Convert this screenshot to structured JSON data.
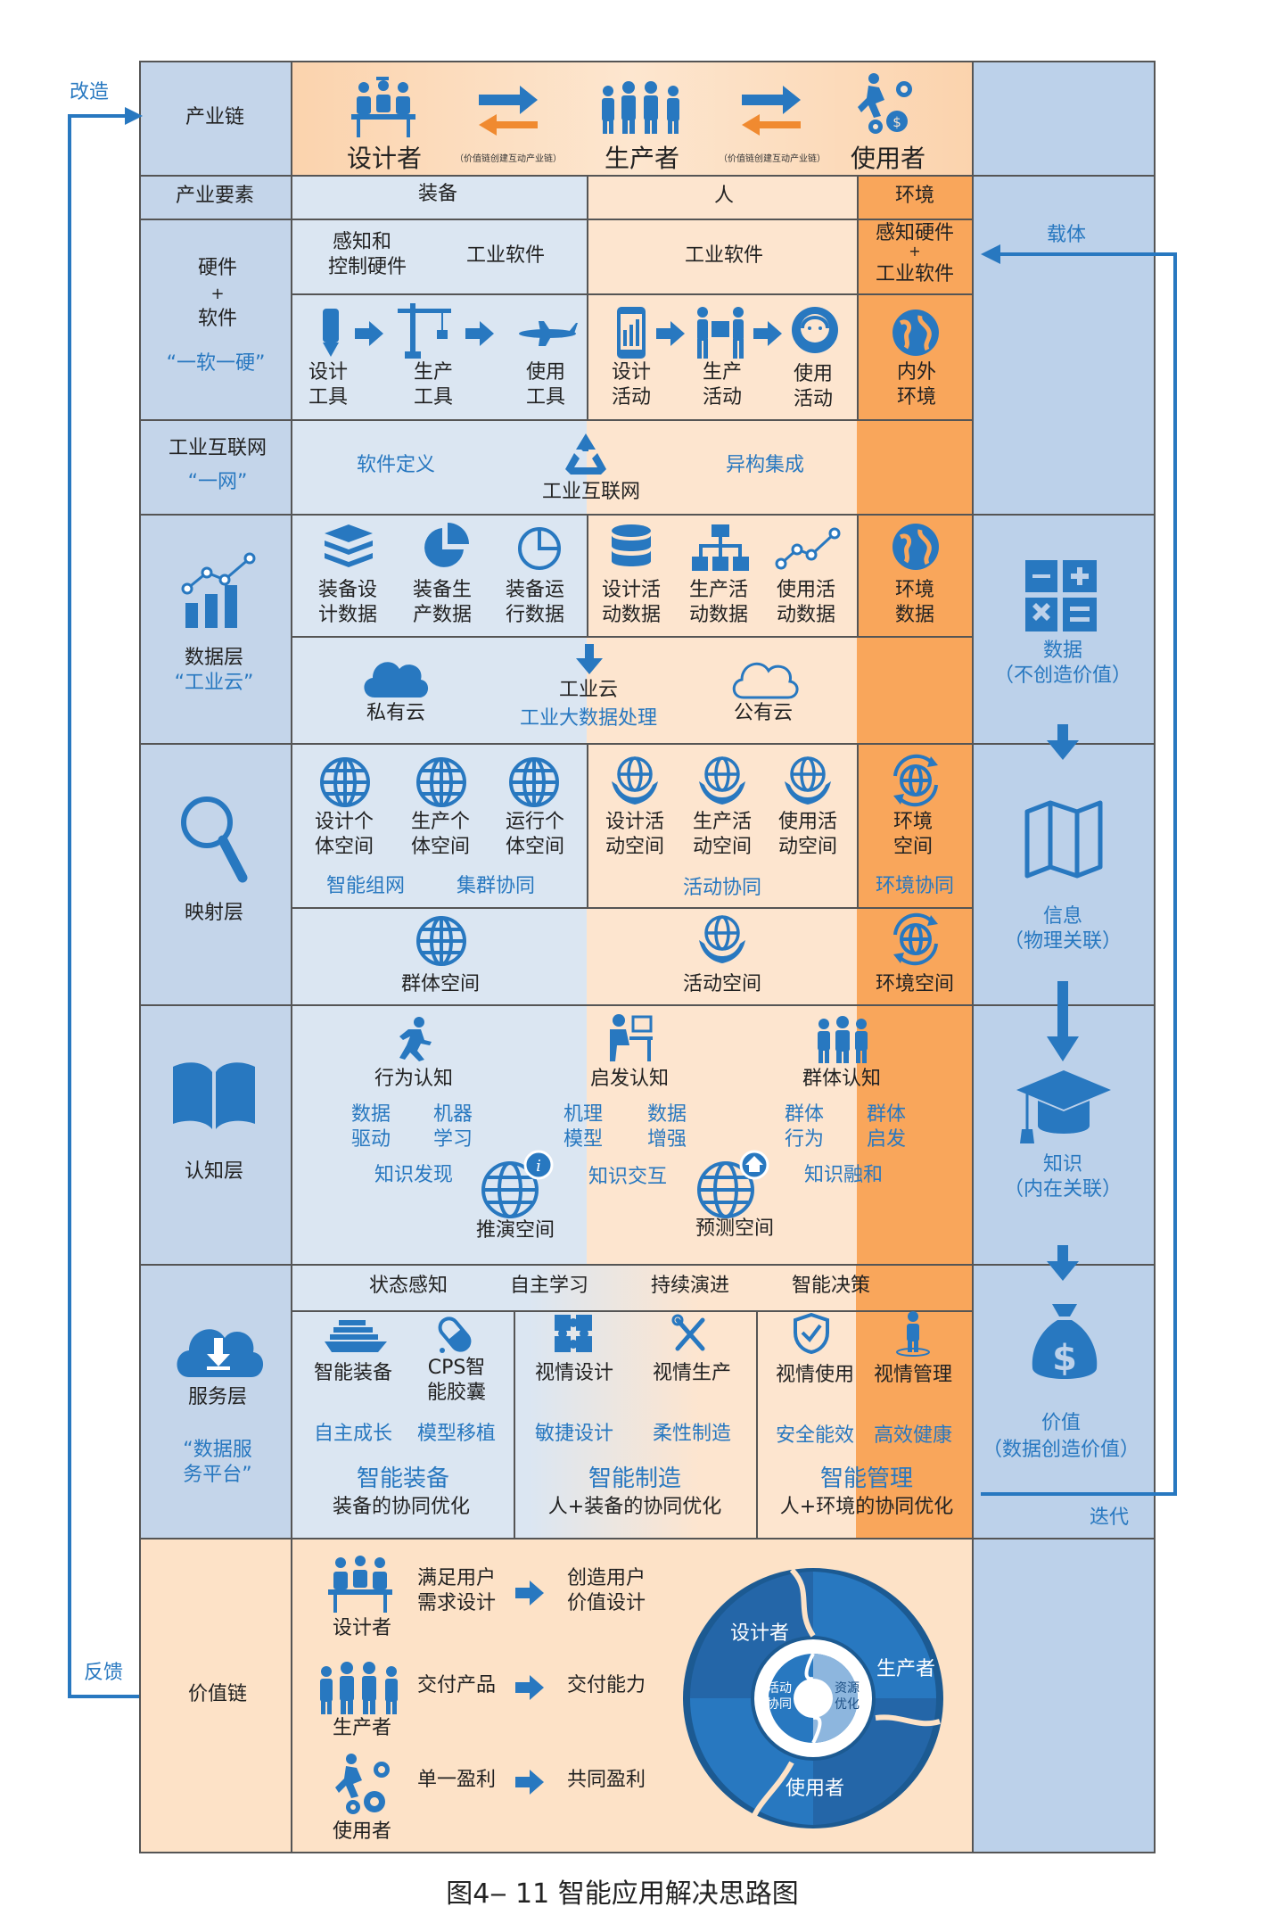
{
  "left_arrows": {
    "gaizao": "改造",
    "fankui": "反馈"
  },
  "right_arrows": {
    "zaiti": "载体",
    "diedai": "迭代"
  },
  "rows": {
    "industry_chain": "产业链",
    "industry_elements": "产业要素",
    "hardware_software": {
      "line1": "硬件",
      "plus": "+",
      "line2": "软件",
      "quote": "“一软一硬”"
    },
    "industrial_internet": {
      "line1": "工业互联网",
      "quote": "“一网”"
    },
    "data_layer": {
      "line1": "数据层",
      "quote": "“工业云”"
    },
    "mapping_layer": "映射层",
    "cognition_layer": "认知层",
    "service_layer": {
      "line1": "服务层",
      "quote_l1": "“数据服",
      "quote_l2": "务平台”"
    },
    "value_chain": "价值链"
  },
  "chain_top": {
    "designer": "设计者",
    "producer": "生产者",
    "user": "使用者",
    "note1": "（价值链创建互动产业链）",
    "note2": "（价值链创建互动产业链）"
  },
  "elements": {
    "equipment": "装备",
    "people": "人",
    "environment": "环境"
  },
  "hw_header": {
    "sense_l1": "感知和",
    "sense_l2": "控制硬件",
    "software1": "工业软件",
    "software2": "工业软件",
    "env_l1": "感知硬件",
    "env_plus": "+",
    "env_l2": "工业软件"
  },
  "tools": {
    "design_l1": "设计",
    "design_l2": "工具",
    "produce_l1": "生产",
    "produce_l2": "工具",
    "use_l1": "使用",
    "use_l2": "工具",
    "dact_l1": "设计",
    "dact_l2": "活动",
    "pact_l1": "生产",
    "pact_l2": "活动",
    "uact_l1": "使用",
    "uact_l2": "活动",
    "env_l1": "内外",
    "env_l2": "环境"
  },
  "internet": {
    "left": "软件定义",
    "right": "异构集成",
    "center": "工业互联网"
  },
  "data": {
    "d1_l1": "装备设",
    "d1_l2": "计数据",
    "d2_l1": "装备生",
    "d2_l2": "产数据",
    "d3_l1": "装备运",
    "d3_l2": "行数据",
    "d4_l1": "设计活",
    "d4_l2": "动数据",
    "d5_l1": "生产活",
    "d5_l2": "动数据",
    "d6_l1": "使用活",
    "d6_l2": "动数据",
    "d7_l1": "环境",
    "d7_l2": "数据",
    "private": "私有云",
    "public": "公有云",
    "cloud": "工业云",
    "bigdata": "工业大数据处理"
  },
  "mapping": {
    "m1_l1": "设计个",
    "m1_l2": "体空间",
    "m2_l1": "生产个",
    "m2_l2": "体空间",
    "m3_l1": "运行个",
    "m3_l2": "体空间",
    "m4_l1": "设计活",
    "m4_l2": "动空间",
    "m5_l1": "生产活",
    "m5_l2": "动空间",
    "m6_l1": "使用活",
    "m6_l2": "动空间",
    "m7_l1": "环境",
    "m7_l2": "空间",
    "smart_net": "智能组网",
    "cluster": "集群协同",
    "activity_co": "活动协同",
    "env_co": "环境协同",
    "group_space": "群体空间",
    "activity_space": "活动空间",
    "env_space": "环境空间"
  },
  "cognition": {
    "behavior": "行为认知",
    "inspire": "启发认知",
    "group": "群体认知",
    "b1_l1": "数据",
    "b1_l2": "驱动",
    "b2_l1": "机器",
    "b2_l2": "学习",
    "i1_l1": "机理",
    "i1_l2": "模型",
    "i2_l1": "数据",
    "i2_l2": "增强",
    "g1_l1": "群体",
    "g1_l2": "行为",
    "g2_l1": "群体",
    "g2_l2": "启发",
    "discover": "知识发现",
    "interact": "知识交互",
    "fuse": "知识融和",
    "deduce": "推演空间",
    "predict": "预测空间"
  },
  "service": {
    "top1": "状态感知",
    "top2": "自主学习",
    "top3": "持续演进",
    "top4": "智能决策",
    "smart_equip": "智能装备",
    "cps_l1": "CPS智",
    "cps_l2": "能胶囊",
    "vis_design": "视情设计",
    "vis_produce": "视情生产",
    "vis_use": "视情使用",
    "vis_manage": "视情管理",
    "grow": "自主成长",
    "transplant": "模型移植",
    "agile": "敏捷设计",
    "flexible": "柔性制造",
    "safe": "安全能效",
    "healthy": "高效健康",
    "cat1": "智能装备",
    "cat2": "智能制造",
    "cat3": "智能管理",
    "sub1": "装备的协同优化",
    "sub2": "人+装备的协同优化",
    "sub3": "人+环境的协同优化"
  },
  "value": {
    "designer": "设计者",
    "producer": "生产者",
    "user": "使用者",
    "r1a_l1": "满足用户",
    "r1a_l2": "需求设计",
    "r1b_l1": "创造用户",
    "r1b_l2": "价值设计",
    "r2a": "交付产品",
    "r2b": "交付能力",
    "r3a": "单一盈利",
    "r3b": "共同盈利",
    "ring_designer": "设计者",
    "ring_producer": "生产者",
    "ring_user": "使用者",
    "inner_l1a": "活动",
    "inner_l1b": "协同",
    "inner_r1a": "资源",
    "inner_r1b": "优化"
  },
  "right_col": {
    "data_l1": "数据",
    "data_l2": "（不创造价值）",
    "info_l1": "信息",
    "info_l2": "（物理关联）",
    "know_l1": "知识",
    "know_l2": "（内在关联）",
    "value_l1": "价值",
    "value_l2": "（数据创造价值）"
  },
  "caption": "图4‒ 11 智能应用解决思路图",
  "colors": {
    "blue": "#2878c0",
    "left_bg": "#c4d5ea",
    "light_blue": "#dbe6f2",
    "peach": "#fce3cc",
    "orange": "#f9a65b",
    "border": "#666666"
  }
}
